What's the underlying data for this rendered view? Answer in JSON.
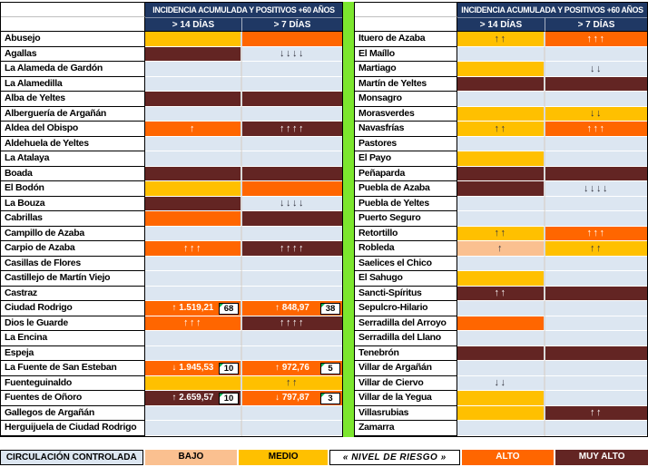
{
  "header": {
    "title": "INCIDENCIA ACUMULADA Y POSITIVOS +60 AÑOS",
    "col14": "> 14 DÍAS",
    "col7": "> 7 DÍAS"
  },
  "risk_colors": {
    "header_navy": "#1F3864",
    "controlled": "#DCE6F1",
    "low": "#FAC090",
    "medium": "#FFC000",
    "high": "#FF6600",
    "very_high": "#632523",
    "divider_green": "#7CE62E",
    "comment_marker_green": "#00B050"
  },
  "left_table": {
    "rows": [
      {
        "name": "Abusejo",
        "d14": {
          "level": "medium",
          "text": ""
        },
        "d7": {
          "level": "high",
          "text": ""
        }
      },
      {
        "name": "Agallas",
        "d14": {
          "level": "very_high",
          "text": ""
        },
        "d7": {
          "level": "controlled",
          "text": "↓↓↓↓"
        }
      },
      {
        "name": "La Alameda de Gardón",
        "d14": {
          "level": "controlled",
          "text": ""
        },
        "d7": {
          "level": "controlled",
          "text": ""
        }
      },
      {
        "name": "La Alamedilla",
        "d14": {
          "level": "controlled",
          "text": ""
        },
        "d7": {
          "level": "controlled",
          "text": ""
        }
      },
      {
        "name": "Alba de Yeltes",
        "d14": {
          "level": "very_high",
          "text": ""
        },
        "d7": {
          "level": "very_high",
          "text": ""
        }
      },
      {
        "name": "Alberguería de Argañán",
        "d14": {
          "level": "controlled",
          "text": ""
        },
        "d7": {
          "level": "controlled",
          "text": ""
        }
      },
      {
        "name": "Aldea del Obispo",
        "d14": {
          "level": "high",
          "text": "↑"
        },
        "d7": {
          "level": "very_high",
          "text": "↑↑↑↑"
        }
      },
      {
        "name": "Aldehuela de Yeltes",
        "d14": {
          "level": "controlled",
          "text": ""
        },
        "d7": {
          "level": "controlled",
          "text": ""
        }
      },
      {
        "name": "La Atalaya",
        "d14": {
          "level": "controlled",
          "text": ""
        },
        "d7": {
          "level": "controlled",
          "text": ""
        }
      },
      {
        "name": "Boada",
        "d14": {
          "level": "very_high",
          "text": ""
        },
        "d7": {
          "level": "very_high",
          "text": ""
        }
      },
      {
        "name": "El Bodón",
        "d14": {
          "level": "medium",
          "text": ""
        },
        "d7": {
          "level": "high",
          "text": ""
        }
      },
      {
        "name": "La Bouza",
        "d14": {
          "level": "very_high",
          "text": ""
        },
        "d7": {
          "level": "controlled",
          "text": "↓↓↓↓"
        }
      },
      {
        "name": "Cabrillas",
        "d14": {
          "level": "high",
          "text": ""
        },
        "d7": {
          "level": "very_high",
          "text": ""
        }
      },
      {
        "name": "Campillo de Azaba",
        "d14": {
          "level": "controlled",
          "text": ""
        },
        "d7": {
          "level": "controlled",
          "text": ""
        }
      },
      {
        "name": "Carpio de Azaba",
        "d14": {
          "level": "high",
          "text": "↑↑↑"
        },
        "d7": {
          "level": "very_high",
          "text": "↑↑↑↑"
        }
      },
      {
        "name": "Casillas de Flores",
        "d14": {
          "level": "controlled",
          "text": ""
        },
        "d7": {
          "level": "controlled",
          "text": ""
        }
      },
      {
        "name": "Castillejo de Martín Viejo",
        "d14": {
          "level": "controlled",
          "text": ""
        },
        "d7": {
          "level": "controlled",
          "text": ""
        }
      },
      {
        "name": "Castraz",
        "d14": {
          "level": "controlled",
          "text": ""
        },
        "d7": {
          "level": "controlled",
          "text": ""
        }
      },
      {
        "name": "Ciudad Rodrigo",
        "d14": {
          "level": "high",
          "text": "↑ 1.519,21",
          "badge": "68"
        },
        "d7": {
          "level": "high",
          "text": "↑ 848,97",
          "badge": "38"
        }
      },
      {
        "name": "Dios le Guarde",
        "d14": {
          "level": "high",
          "text": "↑↑↑"
        },
        "d7": {
          "level": "very_high",
          "text": "↑↑↑↑"
        }
      },
      {
        "name": "La Encina",
        "d14": {
          "level": "controlled",
          "text": ""
        },
        "d7": {
          "level": "controlled",
          "text": ""
        }
      },
      {
        "name": "Espeja",
        "d14": {
          "level": "controlled",
          "text": ""
        },
        "d7": {
          "level": "controlled",
          "text": ""
        }
      },
      {
        "name": "La Fuente de San Esteban",
        "d14": {
          "level": "high",
          "text": "↓ 1.945,53",
          "badge": "10"
        },
        "d7": {
          "level": "high",
          "text": "↑ 972,76",
          "badge": "5"
        }
      },
      {
        "name": "Fuenteguinaldo",
        "d14": {
          "level": "medium",
          "text": ""
        },
        "d7": {
          "level": "medium",
          "text": "↑↑"
        }
      },
      {
        "name": "Fuentes de Oñoro",
        "d14": {
          "level": "very_high",
          "text": "↑ 2.659,57",
          "badge": "10"
        },
        "d7": {
          "level": "high",
          "text": "↓ 797,87",
          "badge": "3"
        }
      },
      {
        "name": "Gallegos de Argañán",
        "d14": {
          "level": "controlled",
          "text": ""
        },
        "d7": {
          "level": "controlled",
          "text": ""
        }
      },
      {
        "name": "Herguijuela de Ciudad Rodrigo",
        "d14": {
          "level": "controlled",
          "text": ""
        },
        "d7": {
          "level": "controlled",
          "text": ""
        }
      }
    ]
  },
  "right_table": {
    "rows": [
      {
        "name": "Ituero de Azaba",
        "d14": {
          "level": "medium",
          "text": "↑↑"
        },
        "d7": {
          "level": "high",
          "text": "↑↑↑"
        }
      },
      {
        "name": "El Maíllo",
        "d14": {
          "level": "controlled",
          "text": ""
        },
        "d7": {
          "level": "controlled",
          "text": ""
        }
      },
      {
        "name": "Martiago",
        "d14": {
          "level": "medium",
          "text": ""
        },
        "d7": {
          "level": "controlled",
          "text": "↓↓"
        }
      },
      {
        "name": "Martín de Yeltes",
        "d14": {
          "level": "very_high",
          "text": ""
        },
        "d7": {
          "level": "very_high",
          "text": ""
        }
      },
      {
        "name": "Monsagro",
        "d14": {
          "level": "controlled",
          "text": ""
        },
        "d7": {
          "level": "controlled",
          "text": ""
        }
      },
      {
        "name": "Morasverdes",
        "d14": {
          "level": "medium",
          "text": ""
        },
        "d7": {
          "level": "medium",
          "text": "↓↓"
        }
      },
      {
        "name": "Navasfrías",
        "d14": {
          "level": "medium",
          "text": "↑↑"
        },
        "d7": {
          "level": "high",
          "text": "↑↑↑"
        }
      },
      {
        "name": "Pastores",
        "d14": {
          "level": "controlled",
          "text": ""
        },
        "d7": {
          "level": "controlled",
          "text": ""
        }
      },
      {
        "name": "El Payo",
        "d14": {
          "level": "medium",
          "text": ""
        },
        "d7": {
          "level": "controlled",
          "text": ""
        }
      },
      {
        "name": "Peñaparda",
        "d14": {
          "level": "very_high",
          "text": ""
        },
        "d7": {
          "level": "very_high",
          "text": ""
        }
      },
      {
        "name": "Puebla de Azaba",
        "d14": {
          "level": "very_high",
          "text": ""
        },
        "d7": {
          "level": "controlled",
          "text": "↓↓↓↓"
        }
      },
      {
        "name": "Puebla de Yeltes",
        "d14": {
          "level": "controlled",
          "text": ""
        },
        "d7": {
          "level": "controlled",
          "text": ""
        }
      },
      {
        "name": "Puerto Seguro",
        "d14": {
          "level": "controlled",
          "text": ""
        },
        "d7": {
          "level": "controlled",
          "text": ""
        }
      },
      {
        "name": "Retortillo",
        "d14": {
          "level": "medium",
          "text": "↑↑"
        },
        "d7": {
          "level": "high",
          "text": "↑↑↑"
        }
      },
      {
        "name": "Robleda",
        "d14": {
          "level": "low",
          "text": "↑"
        },
        "d7": {
          "level": "medium",
          "text": "↑↑"
        }
      },
      {
        "name": "Saelices el Chico",
        "d14": {
          "level": "controlled",
          "text": ""
        },
        "d7": {
          "level": "controlled",
          "text": ""
        }
      },
      {
        "name": "El Sahugo",
        "d14": {
          "level": "medium",
          "text": ""
        },
        "d7": {
          "level": "controlled",
          "text": ""
        }
      },
      {
        "name": "Sancti-Spíritus",
        "d14": {
          "level": "very_high",
          "text": "↑↑"
        },
        "d7": {
          "level": "very_high",
          "text": ""
        }
      },
      {
        "name": "Sepulcro-Hilario",
        "d14": {
          "level": "controlled",
          "text": ""
        },
        "d7": {
          "level": "controlled",
          "text": ""
        }
      },
      {
        "name": "Serradilla del Arroyo",
        "d14": {
          "level": "high",
          "text": ""
        },
        "d7": {
          "level": "controlled",
          "text": ""
        }
      },
      {
        "name": "Serradilla del Llano",
        "d14": {
          "level": "controlled",
          "text": ""
        },
        "d7": {
          "level": "controlled",
          "text": ""
        }
      },
      {
        "name": "Tenebrón",
        "d14": {
          "level": "very_high",
          "text": ""
        },
        "d7": {
          "level": "very_high",
          "text": ""
        }
      },
      {
        "name": "Villar de Argañán",
        "d14": {
          "level": "controlled",
          "text": ""
        },
        "d7": {
          "level": "controlled",
          "text": ""
        }
      },
      {
        "name": "Villar de Ciervo",
        "d14": {
          "level": "controlled",
          "text": "↓↓"
        },
        "d7": {
          "level": "controlled",
          "text": ""
        }
      },
      {
        "name": "Villar de la Yegua",
        "d14": {
          "level": "medium",
          "text": ""
        },
        "d7": {
          "level": "controlled",
          "text": ""
        }
      },
      {
        "name": "Villasrubias",
        "d14": {
          "level": "medium",
          "text": ""
        },
        "d7": {
          "level": "very_high",
          "text": "↑↑"
        }
      },
      {
        "name": "Zamarra",
        "d14": {
          "level": "controlled",
          "text": ""
        },
        "d7": {
          "level": "controlled",
          "text": ""
        }
      }
    ]
  },
  "legend": [
    {
      "label": "CIRCULACIÓN CONTROLADA",
      "level": "controlled",
      "width": 158,
      "bordered": true,
      "italic": false
    },
    {
      "label": "BAJO",
      "level": "low",
      "width": 102,
      "bordered": false,
      "italic": false
    },
    {
      "label": "MEDIO",
      "level": "medium",
      "width": 98,
      "bordered": false,
      "italic": false
    },
    {
      "label": "« NIVEL DE RIESGO »",
      "level": "label",
      "width": 144,
      "bordered": true,
      "italic": true
    },
    {
      "label": "ALTO",
      "level": "high",
      "width": 102,
      "bordered": false,
      "italic": false
    },
    {
      "label": "MUY ALTO",
      "level": "very_high",
      "width": 102,
      "bordered": false,
      "italic": false
    }
  ]
}
